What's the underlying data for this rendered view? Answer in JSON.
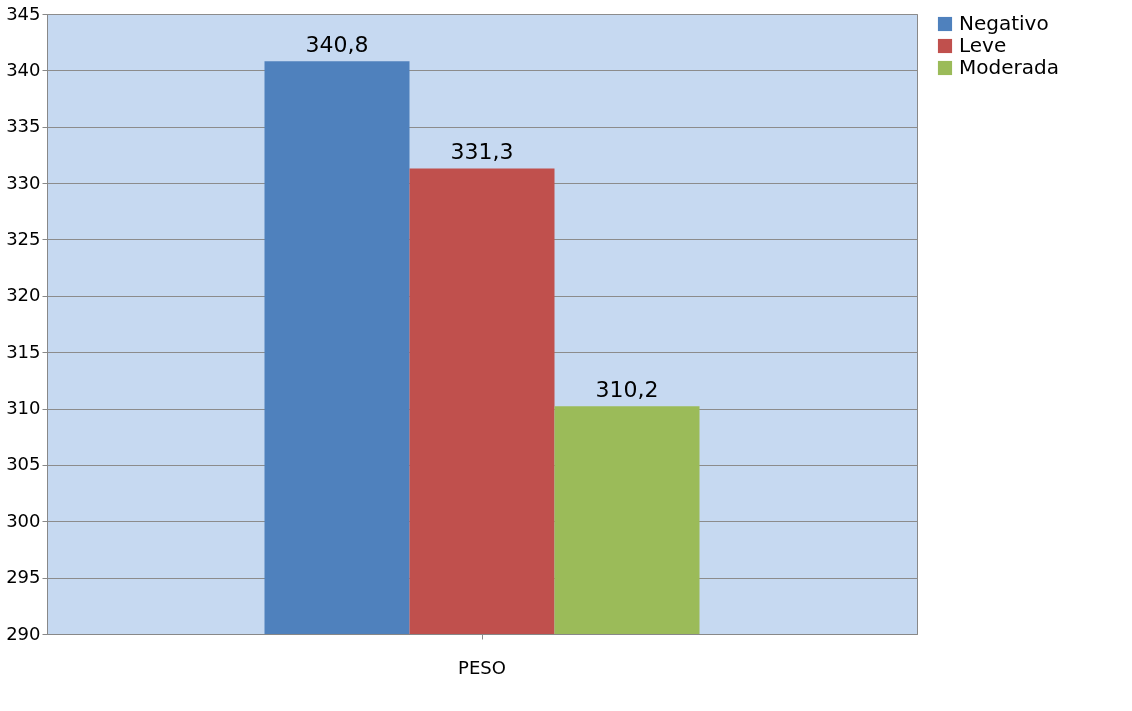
{
  "chart_data": {
    "type": "bar",
    "categories": [
      "PESO"
    ],
    "series": [
      {
        "name": "Negativo",
        "color": "#4f81bd",
        "values": [
          340.8
        ],
        "value_labels": [
          "340,8"
        ]
      },
      {
        "name": "Leve",
        "color": "#c0504d",
        "values": [
          331.3
        ],
        "value_labels": [
          "331,3"
        ]
      },
      {
        "name": "Moderada",
        "color": "#9bbb59",
        "values": [
          310.2
        ],
        "value_labels": [
          "310,2"
        ]
      }
    ],
    "ylim": [
      290,
      345
    ],
    "yticks": [
      290,
      295,
      300,
      305,
      310,
      315,
      320,
      325,
      330,
      335,
      340,
      345
    ],
    "grid": "y",
    "legend": "right"
  }
}
